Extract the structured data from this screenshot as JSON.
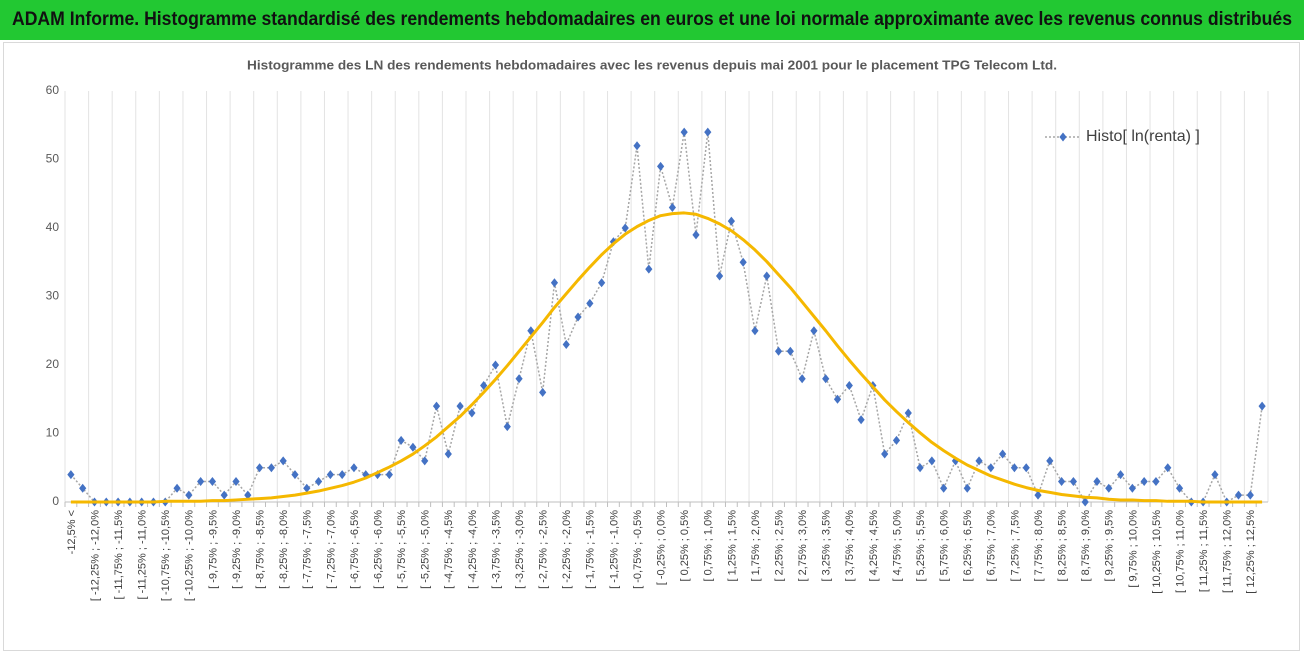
{
  "chart_data": {
    "type": "line",
    "header": "ADAM Informe. Histogramme standardisé des rendements hebdomadaires en euros et une loi normale approximante avec les revenus connus distribués",
    "title": "Histogramme des LN des rendements hebdomadaires avec les revenus depuis mai 2001 pour le placement TPG Telecom Ltd.",
    "categories": [
      "-12,5% <",
      null,
      "[ -12,25% ; -12,0%",
      null,
      "[ -11,75% ; -11,5%",
      null,
      "[ -11,25% ; -11,0%",
      null,
      "[ -10,75% ; -10,5%",
      null,
      "[ -10,25% ; -10,0%",
      null,
      "[ -9,75% ; -9,5%",
      null,
      "[ -9,25% ; -9,0%",
      null,
      "[ -8,75% ; -8,5%",
      null,
      "[ -8,25% ; -8,0%",
      null,
      "[ -7,75% ; -7,5%",
      null,
      "[ -7,25% ; -7,0%",
      null,
      "[ -6,75% ; -6,5%",
      null,
      "[ -6,25% ; -6,0%",
      null,
      "[ -5,75% ; -5,5%",
      null,
      "[ -5,25% ; -5,0%",
      null,
      "[ -4,75% ; -4,5%",
      null,
      "[ -4,25% ; -4,0%",
      null,
      "[ -3,75% ; -3,5%",
      null,
      "[ -3,25% ; -3,0%",
      null,
      "[ -2,75% ; -2,5%",
      null,
      "[ -2,25% ; -2,0%",
      null,
      "[ -1,75% ; -1,5%",
      null,
      "[ -1,25% ; -1,0%",
      null,
      "[ -0,75% ; -0,5%",
      null,
      "[ -0,25% ; 0,0%",
      null,
      "[ 0,25% ; 0,5%",
      null,
      "[ 0,75% ; 1,0%",
      null,
      "[ 1,25% ; 1,5%",
      null,
      "[ 1,75% ; 2,0%",
      null,
      "[ 2,25% ; 2,5%",
      null,
      "[ 2,75% ; 3,0%",
      null,
      "[ 3,25% ; 3,5%",
      null,
      "[ 3,75% ; 4,0%",
      null,
      "[ 4,25% ; 4,5%",
      null,
      "[ 4,75% ; 5,0%",
      null,
      "[ 5,25% ; 5,5%",
      null,
      "[ 5,75% ; 6,0%",
      null,
      "[ 6,25% ; 6,5%",
      null,
      "[ 6,75% ; 7,0%",
      null,
      "[ 7,25% ; 7,5%",
      null,
      "[ 7,75% ; 8,0%",
      null,
      "[ 8,25% ; 8,5%",
      null,
      "[ 8,75% ; 9,0%",
      null,
      "[ 9,25% ; 9,5%",
      null,
      "[ 9,75% ; 10,0%",
      null,
      "[ 10,25% ; 10,5%",
      null,
      "[ 10,75% ; 11,0%",
      null,
      "[ 11,25% ; 11,5%",
      null,
      "[ 11,75% ; 12,0%",
      null,
      "[ 12,25% ; 12,5%",
      null
    ],
    "series": [
      {
        "name": "Histo[ ln(renta) ]",
        "color": "#4472c4",
        "line_color": "#a6a6a6",
        "values": [
          4,
          2,
          0,
          0,
          0,
          0,
          0,
          0,
          0,
          2,
          1,
          3,
          3,
          1,
          3,
          1,
          5,
          5,
          6,
          4,
          2,
          3,
          4,
          4,
          5,
          4,
          4,
          4,
          9,
          8,
          6,
          14,
          7,
          14,
          13,
          17,
          20,
          11,
          18,
          25,
          16,
          32,
          23,
          27,
          29,
          32,
          38,
          40,
          52,
          34,
          49,
          43,
          54,
          39,
          54,
          33,
          41,
          35,
          25,
          33,
          22,
          22,
          18,
          25,
          18,
          15,
          17,
          12,
          17,
          7,
          9,
          13,
          5,
          6,
          2,
          6,
          2,
          6,
          5,
          7,
          5,
          5,
          1,
          6,
          3,
          3,
          0,
          3,
          2,
          4,
          2,
          3,
          3,
          5,
          2,
          0,
          0,
          4,
          0,
          1,
          1,
          14
        ]
      },
      {
        "color": "#f5b800",
        "values": [
          0,
          0,
          0,
          0,
          0,
          0,
          0,
          0,
          0.1,
          0.1,
          0.1,
          0.1,
          0.2,
          0.2,
          0.3,
          0.4,
          0.5,
          0.6,
          0.8,
          1.0,
          1.3,
          1.6,
          2.0,
          2.4,
          2.9,
          3.5,
          4.3,
          5.1,
          6.0,
          7.0,
          8.2,
          9.5,
          11.0,
          12.5,
          14.2,
          16.0,
          17.9,
          19.9,
          22.0,
          24.1,
          26.2,
          28.4,
          30.4,
          32.4,
          34.3,
          36.1,
          37.7,
          39.1,
          40.2,
          41.1,
          41.8,
          42.1,
          42.2,
          42.0,
          41.4,
          40.6,
          39.6,
          38.3,
          36.8,
          35.1,
          33.2,
          31.3,
          29.2,
          27.1,
          25.0,
          22.8,
          20.7,
          18.7,
          16.8,
          14.9,
          13.2,
          11.6,
          10.1,
          8.7,
          7.5,
          6.4,
          5.4,
          4.6,
          3.8,
          3.2,
          2.6,
          2.1,
          1.7,
          1.4,
          1.1,
          0.9,
          0.7,
          0.6,
          0.4,
          0.3,
          0.3,
          0.2,
          0.2,
          0.1,
          0.1,
          0.1,
          0,
          0,
          0,
          0,
          0,
          0
        ]
      }
    ],
    "ylim": [
      0,
      60
    ],
    "yticks": [
      0,
      10,
      20,
      30,
      40,
      50,
      60
    ],
    "legend": "top-right"
  }
}
